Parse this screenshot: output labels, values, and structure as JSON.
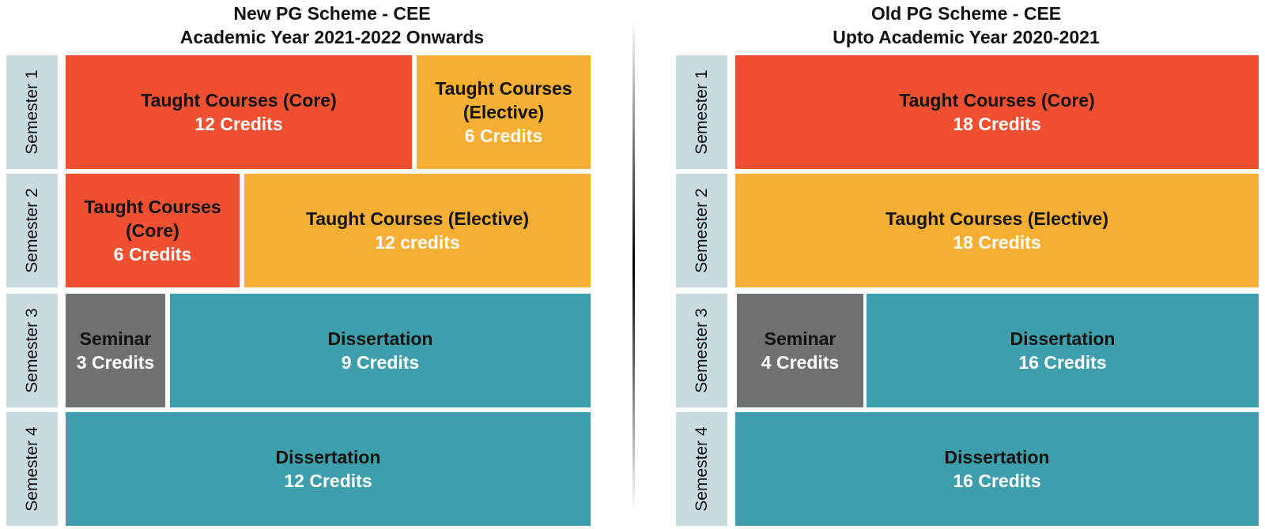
{
  "left": {
    "title_line1": "New PG Scheme - CEE",
    "title_line2": "Academic Year 2021-2022 Onwards",
    "semesters": [
      "Semester 1",
      "Semester 2",
      "Semester 3",
      "Semester 4"
    ],
    "blocks": {
      "s1_core": {
        "lines": [
          "Taught Courses (Core)"
        ],
        "credits": "12 Credits"
      },
      "s1_elective": {
        "lines": [
          "Taught Courses",
          "(Elective)"
        ],
        "credits": "6 Credits"
      },
      "s2_core": {
        "lines": [
          "Taught Courses",
          "(Core)"
        ],
        "credits": "6 Credits"
      },
      "s2_elective": {
        "lines": [
          "Taught Courses (Elective)"
        ],
        "credits": "12 credits"
      },
      "s3_seminar": {
        "lines": [
          "Seminar"
        ],
        "credits": "3 Credits"
      },
      "s3_diss": {
        "lines": [
          "Dissertation"
        ],
        "credits": "9 Credits"
      },
      "s4_diss": {
        "lines": [
          "Dissertation"
        ],
        "credits": "12 Credits"
      }
    }
  },
  "right": {
    "title_line1": "Old PG Scheme - CEE",
    "title_line2": "Upto Academic Year 2020-2021",
    "semesters": [
      "Semester 1",
      "Semester 2",
      "Semester 3",
      "Semester 4"
    ],
    "blocks": {
      "s1_core": {
        "lines": [
          "Taught Courses (Core)"
        ],
        "credits": "18 Credits"
      },
      "s2_elective": {
        "lines": [
          "Taught Courses (Elective)"
        ],
        "credits": "18 Credits"
      },
      "s3_seminar": {
        "lines": [
          "Seminar"
        ],
        "credits": "4 Credits"
      },
      "s3_diss": {
        "lines": [
          "Dissertation"
        ],
        "credits": "16 Credits"
      },
      "s4_diss": {
        "lines": [
          "Dissertation"
        ],
        "credits": "16 Credits"
      }
    }
  },
  "colors": {
    "core": "#f05032",
    "elective": "#f6af32",
    "seminar": "#6e7371",
    "dissertation": "#3f9eab",
    "semester_label_bg": "#c9dae0"
  }
}
